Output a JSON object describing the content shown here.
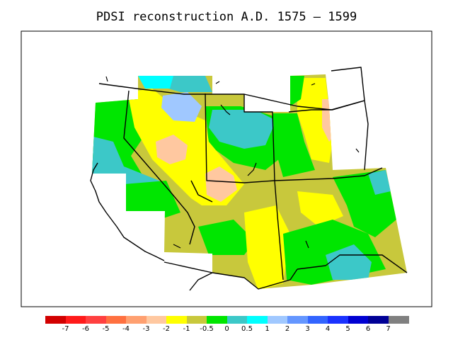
{
  "title": "PDSI reconstruction A.D. 1575 – 1599",
  "legend": {
    "colors": [
      "#d20000",
      "#ff1a1a",
      "#ff4040",
      "#ff7040",
      "#ffa070",
      "#ffc8a0",
      "#ffff00",
      "#c8c83c",
      "#00e600",
      "#3cc8c8",
      "#00ffff",
      "#a0c8ff",
      "#6496ff",
      "#3264ff",
      "#1a32ff",
      "#0000d2",
      "#000096",
      "#808080"
    ],
    "labels": [
      "-7",
      "-6",
      "-5",
      "-4",
      "-3",
      "-2",
      "-1",
      "-0.5",
      "0",
      "0.5",
      "1",
      "2",
      "3",
      "4",
      "5",
      "6",
      "7"
    ]
  },
  "regions": {
    "dark_green": "#00e600",
    "olive": "#c8c83c",
    "yellow": "#ffff00",
    "peach": "#ffc8a0",
    "teal": "#3cc8c8",
    "cyan": "#00ffff",
    "light_blue": "#a0c8ff"
  }
}
